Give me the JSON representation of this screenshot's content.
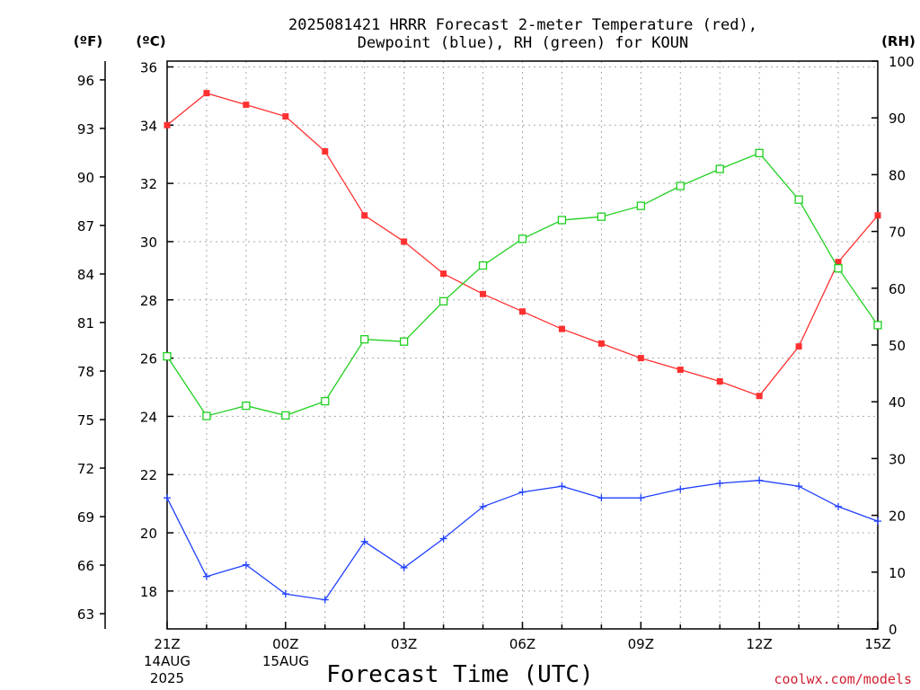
{
  "title_line1": "2025081421 HRRR Forecast 2-meter Temperature (red),",
  "title_line2": "Dewpoint (blue), RH (green) for KOUN",
  "units": {
    "fahrenheit": "(ºF)",
    "celsius": "(ºC)",
    "rh": "(RH)"
  },
  "xlabel": "Forecast Time (UTC)",
  "credit": "coolwx.com/models",
  "date_labels": {
    "start": [
      "14AUG",
      "2025"
    ],
    "midnight": [
      "15AUG"
    ]
  },
  "colors": {
    "temperature": "#ff3030",
    "dewpoint": "#2040ff",
    "rh": "#20d020",
    "credit": "#d02030",
    "grid": "#a8a8a8"
  },
  "chart_data": {
    "type": "line",
    "x": [
      "21Z",
      "22Z",
      "23Z",
      "00Z",
      "01Z",
      "02Z",
      "03Z",
      "04Z",
      "05Z",
      "06Z",
      "07Z",
      "08Z",
      "09Z",
      "10Z",
      "11Z",
      "12Z",
      "13Z",
      "14Z",
      "15Z"
    ],
    "x_tick_labels": [
      "21Z",
      "00Z",
      "03Z",
      "06Z",
      "09Z",
      "12Z",
      "15Z"
    ],
    "left_axis_celsius": {
      "ylim": [
        16.7,
        36.2
      ],
      "ticks": [
        18,
        20,
        22,
        24,
        26,
        28,
        30,
        32,
        34,
        36
      ]
    },
    "left_axis_fahrenheit": {
      "ticks": [
        63,
        66,
        69,
        72,
        75,
        78,
        81,
        84,
        87,
        90,
        93,
        96
      ]
    },
    "right_axis_rh": {
      "ylim": [
        0,
        100
      ],
      "ticks": [
        0,
        10,
        20,
        30,
        40,
        50,
        60,
        70,
        80,
        90,
        100
      ]
    },
    "grid": true,
    "series": [
      {
        "name": "Temperature",
        "axis": "celsius",
        "marker": "filled-square",
        "values": [
          34.0,
          35.1,
          34.7,
          34.3,
          33.1,
          30.9,
          30.0,
          28.9,
          28.2,
          27.6,
          27.0,
          26.5,
          26.0,
          25.6,
          25.2,
          24.7,
          26.4,
          29.3,
          30.9
        ]
      },
      {
        "name": "Dewpoint",
        "axis": "celsius",
        "marker": "plus",
        "values": [
          21.2,
          18.5,
          18.9,
          17.9,
          17.7,
          19.7,
          18.8,
          19.8,
          20.9,
          21.4,
          21.6,
          21.2,
          21.2,
          21.5,
          21.7,
          21.8,
          21.6,
          20.9,
          20.4
        ]
      },
      {
        "name": "RH",
        "axis": "rh",
        "marker": "open-square",
        "values": [
          48,
          37.5,
          39.3,
          37.6,
          40.1,
          51,
          50.6,
          57.7,
          64,
          68.7,
          72,
          72.6,
          74.5,
          78,
          81,
          83.8,
          75.6,
          63.5,
          53.5
        ]
      }
    ]
  }
}
